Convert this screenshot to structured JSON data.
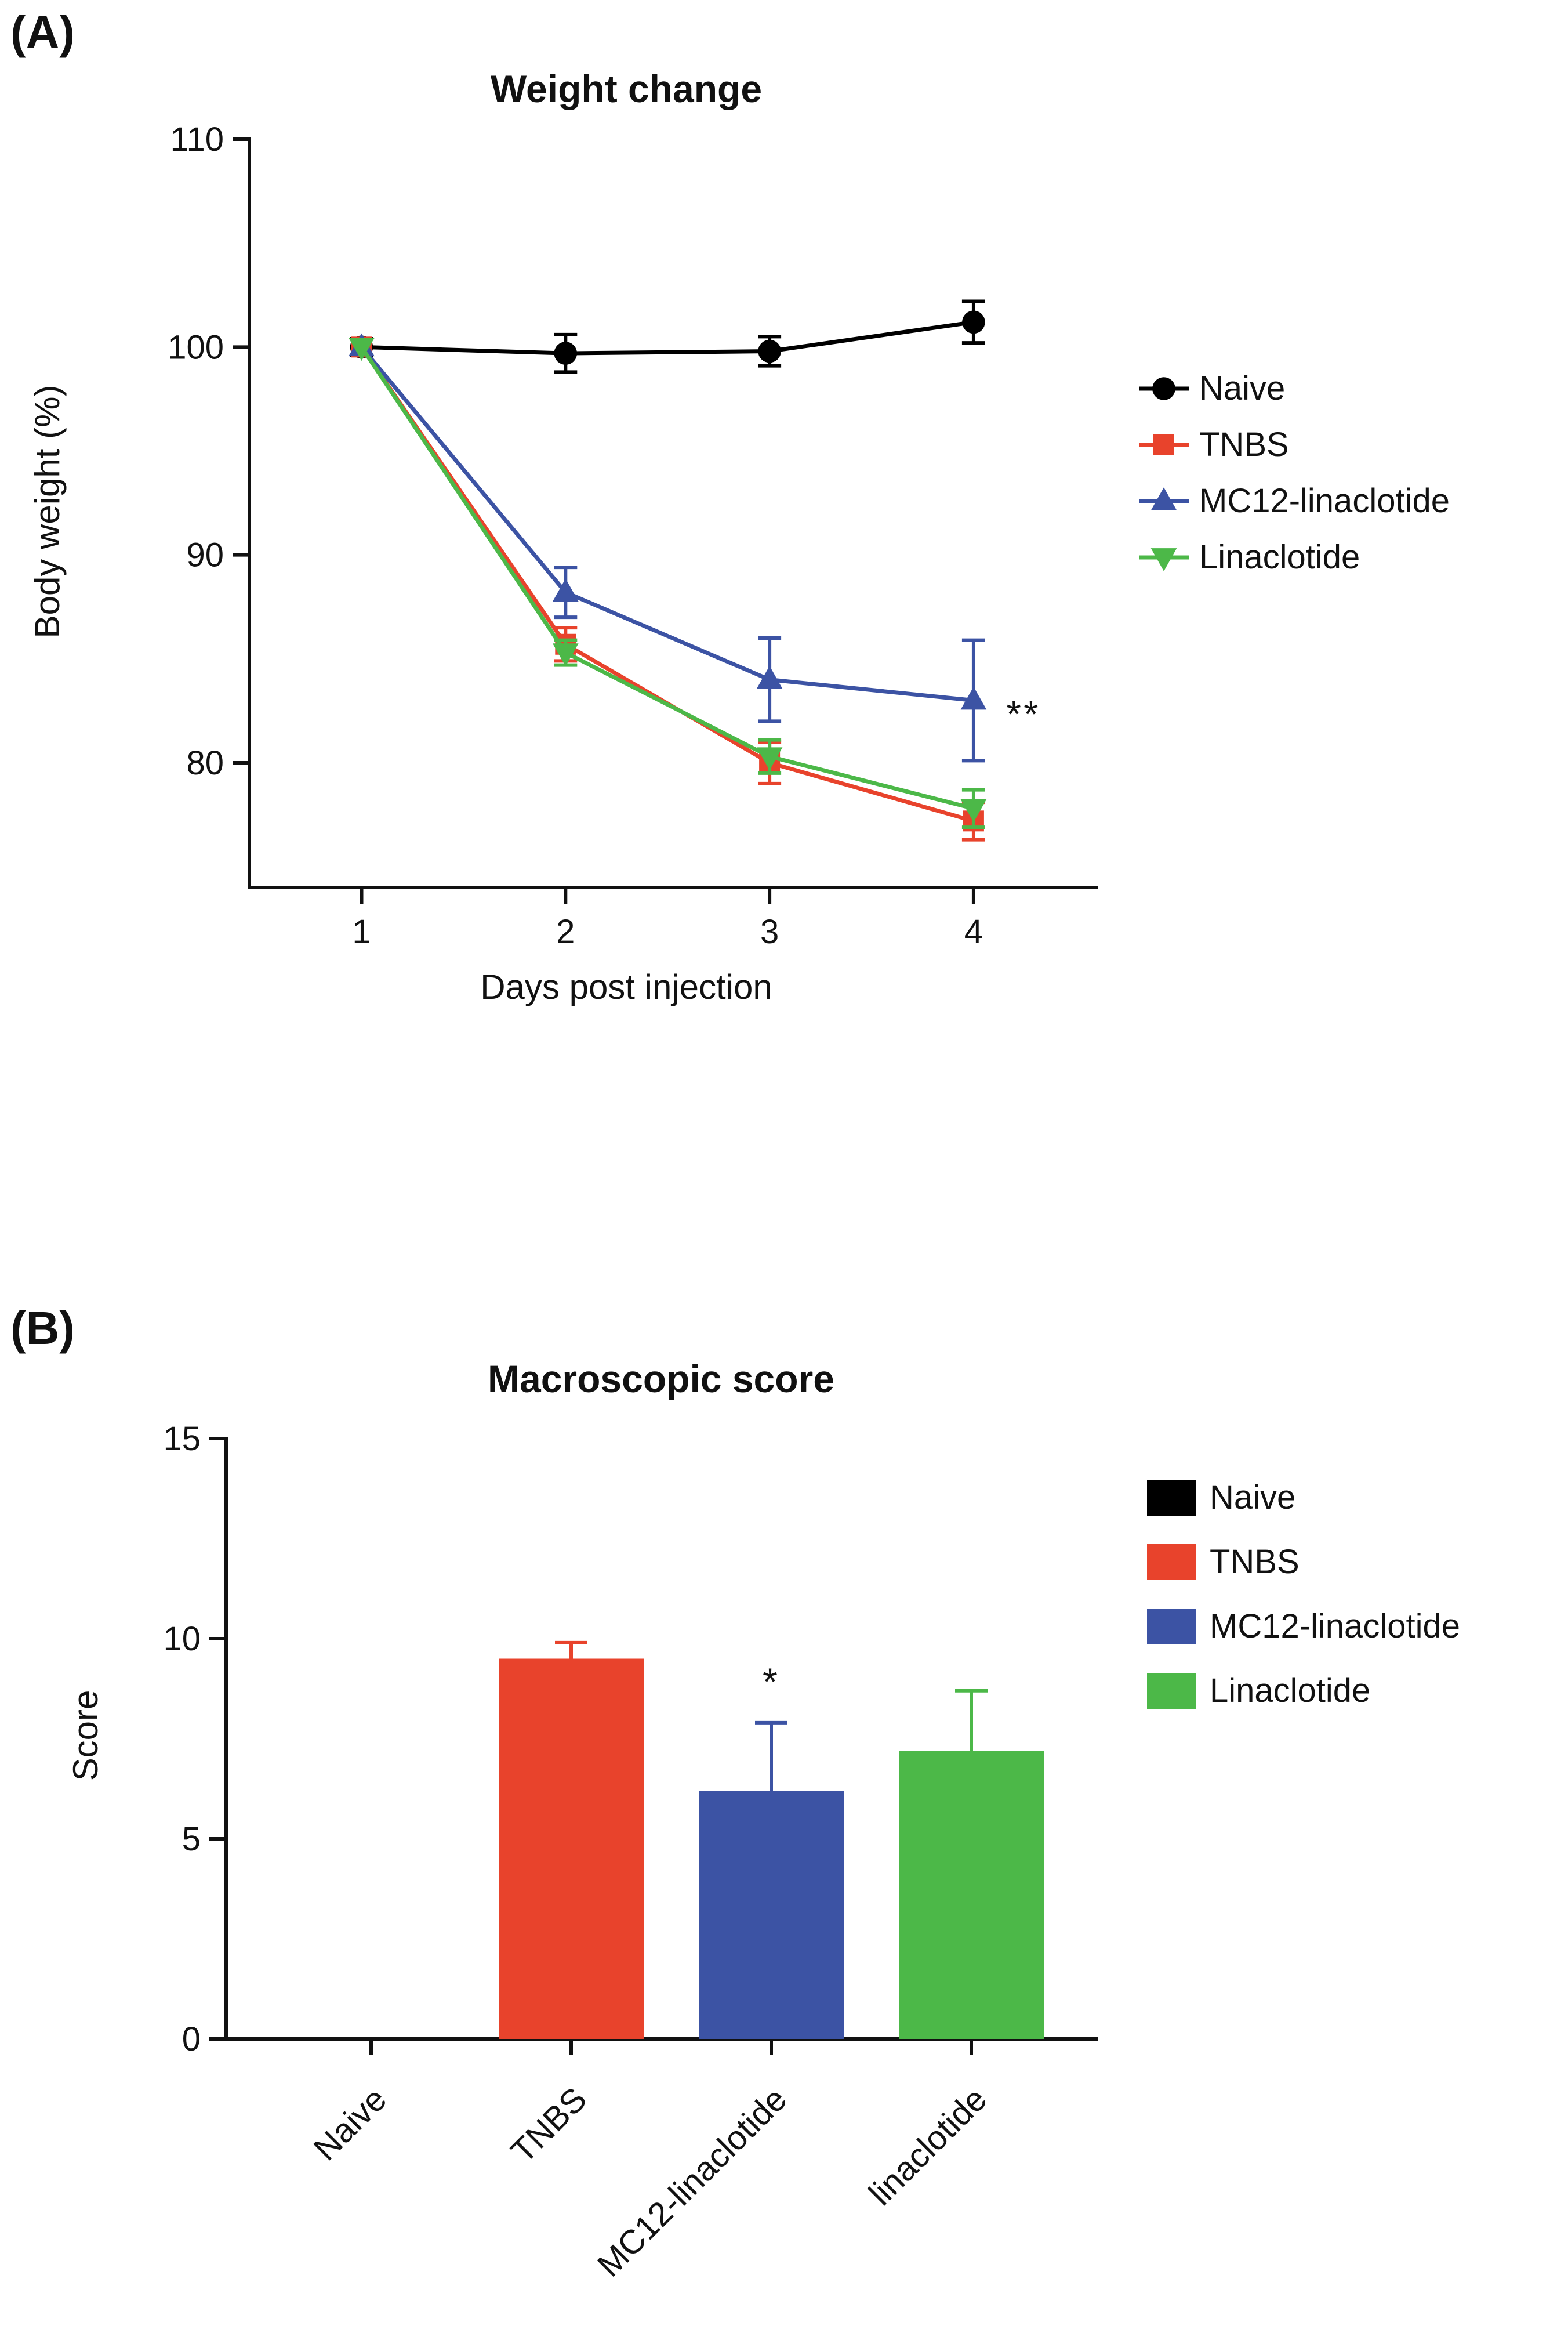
{
  "figure": {
    "background": "#ffffff"
  },
  "panel_a": {
    "label": "(A)"
  },
  "panel_b": {
    "label": "(B)"
  },
  "chart_data": [
    {
      "type": "line",
      "title": "Weight change",
      "xlabel": "Days post injection",
      "ylabel": "Body weight (%)",
      "x": [
        1,
        2,
        3,
        4
      ],
      "xticks": [
        1,
        2,
        3,
        4
      ],
      "yticks": [
        80,
        90,
        100,
        110
      ],
      "xlim": [
        0.45,
        4.6
      ],
      "ylim": [
        74,
        110
      ],
      "grid": false,
      "legend_position": "right",
      "series": [
        {
          "name": "Naive",
          "color": "#000000",
          "marker": "circle",
          "values": [
            100,
            99.7,
            99.8,
            101.2
          ],
          "errors": [
            0.4,
            0.9,
            0.7,
            1.0
          ]
        },
        {
          "name": "TNBS",
          "color": "#e8432c",
          "marker": "square",
          "values": [
            100,
            85.7,
            80.0,
            77.2
          ],
          "errors": [
            0,
            0.8,
            1.0,
            0.9
          ]
        },
        {
          "name": "MC12-linaclotide",
          "color": "#3c53a4",
          "marker": "triangle-up",
          "values": [
            100,
            88.2,
            84.0,
            83.0
          ],
          "errors": [
            0,
            1.2,
            2.0,
            2.9
          ]
        },
        {
          "name": "Linaclotide",
          "color": "#4cb848",
          "marker": "triangle-down",
          "values": [
            100,
            85.3,
            80.3,
            77.8
          ],
          "errors": [
            0,
            0.6,
            0.8,
            0.9
          ]
        }
      ],
      "annotation": {
        "text": "**",
        "x": 4.25,
        "y": 83
      }
    },
    {
      "type": "bar",
      "title": "Macroscopic score",
      "xlabel": "",
      "ylabel": "Score",
      "categories": [
        "Naive",
        "TNBS",
        "MC12-linaclotide",
        "linaclotide"
      ],
      "values": [
        0,
        9.5,
        6.2,
        7.2
      ],
      "errors": [
        0,
        0.4,
        1.7,
        1.5
      ],
      "colors": [
        "#000000",
        "#e8432c",
        "#3c53a4",
        "#4cb848"
      ],
      "legend": [
        "Naive",
        "TNBS",
        "MC12-linaclotide",
        "Linaclotide"
      ],
      "yticks": [
        0,
        5,
        10,
        15
      ],
      "ylim": [
        0,
        15
      ],
      "grid": false,
      "legend_position": "right",
      "annotation": {
        "text": "*",
        "category": "MC12-linaclotide"
      }
    }
  ]
}
